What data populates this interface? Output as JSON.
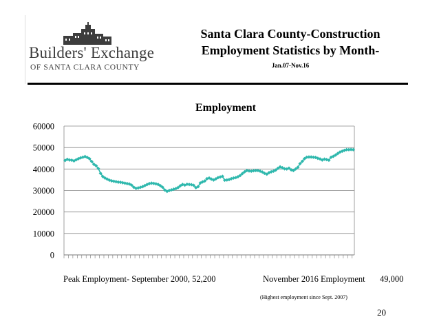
{
  "header": {
    "logo_line1": "Builders' Exchange",
    "logo_line2": "OF SANTA CLARA COUNTY",
    "title_line1": "Santa Clara County-Construction",
    "title_line2": "Employment Statistics by Month-",
    "title_line3": "Jan.07-Nov.16"
  },
  "chart_data": {
    "type": "line",
    "title": "Employment",
    "xlabel": "",
    "ylabel": "",
    "ylim": [
      0,
      60000
    ],
    "yticks": [
      "0",
      "10000",
      "20000",
      "30000",
      "40000",
      "50000",
      "60000"
    ],
    "grid": true,
    "legend": "none",
    "marker": "diamond",
    "line_color": "#2fb8ad",
    "values": [
      44000,
      44500,
      44200,
      44100,
      43800,
      44300,
      44800,
      45200,
      45500,
      45800,
      45400,
      44800,
      43500,
      42200,
      41500,
      40200,
      38000,
      36500,
      35800,
      35300,
      34800,
      34500,
      34300,
      34100,
      33900,
      33800,
      33600,
      33400,
      33200,
      33000,
      32500,
      31500,
      31000,
      31200,
      31500,
      31800,
      32300,
      32800,
      33200,
      33400,
      33300,
      33100,
      32800,
      32200,
      31500,
      30200,
      29600,
      30000,
      30300,
      30600,
      30900,
      31400,
      32200,
      32800,
      32500,
      32900,
      32800,
      32700,
      32400,
      31300,
      31800,
      33500,
      34000,
      34400,
      35500,
      35800,
      35300,
      34900,
      35400,
      36000,
      36300,
      36600,
      34800,
      34900,
      35100,
      35500,
      35800,
      36000,
      36400,
      37000,
      37900,
      38700,
      39300,
      39100,
      39000,
      39200,
      39300,
      39300,
      39000,
      38600,
      38000,
      37600,
      38300,
      38700,
      39000,
      39500,
      40300,
      41000,
      40600,
      40100,
      40000,
      40400,
      39600,
      39300,
      40000,
      40800,
      42500,
      43600,
      44800,
      45500,
      45600,
      45600,
      45500,
      45400,
      45000,
      44700,
      44200,
      44600,
      44400,
      44100,
      45500,
      45900,
      46500,
      47200,
      47900,
      48300,
      48700,
      49000,
      49000,
      49100,
      49000
    ]
  },
  "footer": {
    "peak": "Peak Employment- September 2000, 52,200",
    "current": "November 2016 Employment",
    "current_value": "49,000",
    "note": "(Highest employment since Sept. 2007)",
    "page_number": "20"
  }
}
